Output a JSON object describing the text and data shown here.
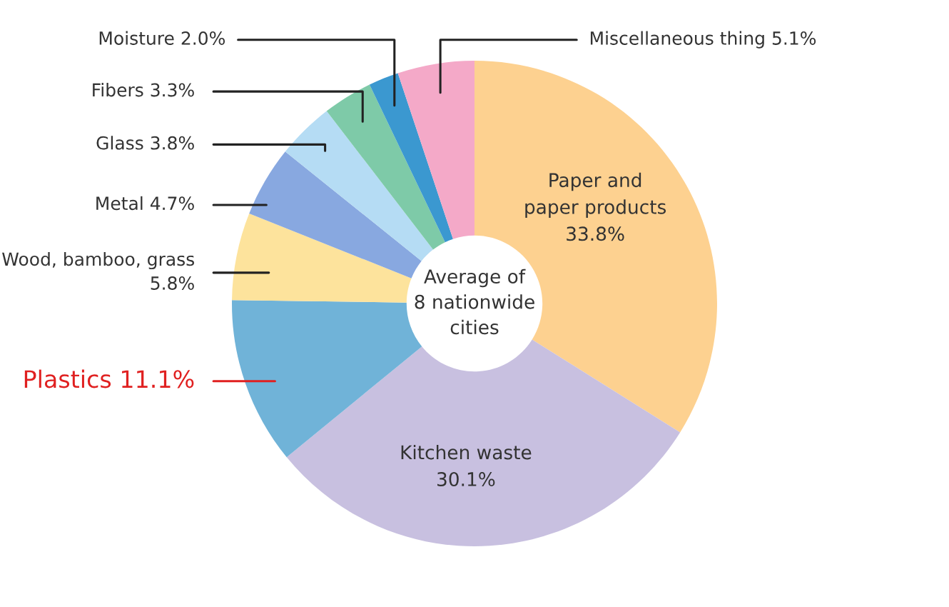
{
  "chart_data": {
    "type": "donut",
    "categories": [
      "Paper and paper products",
      "Kitchen waste",
      "Plastics",
      "Wood, bamboo, grass",
      "Metal",
      "Glass",
      "Fibers",
      "Moisture",
      "Miscellaneous thing"
    ],
    "values": [
      33.8,
      30.1,
      11.1,
      5.8,
      4.7,
      3.8,
      3.3,
      2.0,
      5.1
    ],
    "value_labels": [
      "33.8%",
      "30.1%",
      "11.1%",
      "5.8%",
      "4.7%",
      "3.8%",
      "3.3%",
      "2.0%",
      "5.1%"
    ],
    "colors": [
      "#fdd190",
      "#c8c0e0",
      "#70b3d8",
      "#fde39c",
      "#88a8e0",
      "#b5dcf4",
      "#7ecaa8",
      "#3b98d0",
      "#f4a9c8"
    ],
    "annotations": [
      "Average of\n8 nationwide\ncities"
    ],
    "legend": false
  }
}
